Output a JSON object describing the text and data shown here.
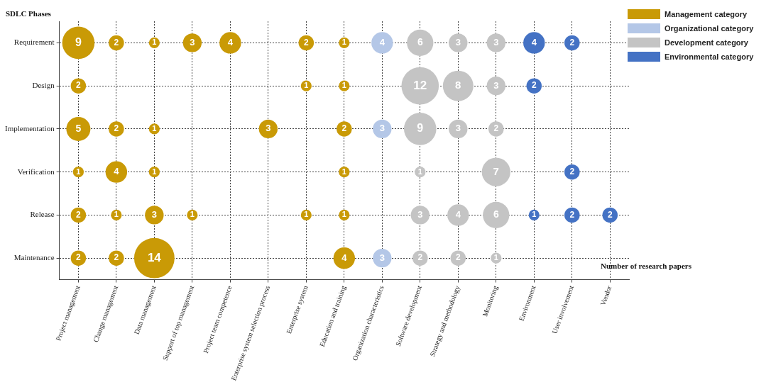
{
  "chart_data": {
    "type": "heatmap",
    "ylabel": "SDLC Phases",
    "annotations": [
      "Management category",
      "Organizational category",
      "Development category",
      "Environmental category",
      "Number of research papers"
    ],
    "categories": [
      "Project management",
      "Change management",
      "Data management",
      "Support of top management",
      "Project team competence",
      "Enterprise system selection process",
      "Enterprise system",
      "Education and training",
      "Organization characteristics",
      "Software development",
      "Strategy and methodology",
      "Monitoring",
      "Environment",
      "User involvement",
      "Vendor"
    ],
    "y_categories": [
      "Requirement",
      "Design",
      "Implementation",
      "Verification",
      "Release",
      "Maintenance"
    ],
    "cells": [
      [
        9,
        2,
        1,
        3,
        4,
        null,
        2,
        1,
        4,
        6,
        3,
        3,
        4,
        2,
        null
      ],
      [
        2,
        null,
        null,
        null,
        null,
        null,
        1,
        1,
        null,
        12,
        8,
        3,
        2,
        null,
        null
      ],
      [
        5,
        2,
        1,
        null,
        null,
        3,
        null,
        2,
        3,
        9,
        3,
        2,
        null,
        null,
        null
      ],
      [
        1,
        4,
        1,
        null,
        null,
        null,
        null,
        1,
        null,
        1,
        null,
        7,
        null,
        2,
        null
      ],
      [
        2,
        1,
        3,
        1,
        null,
        null,
        1,
        1,
        null,
        3,
        4,
        6,
        1,
        2,
        2
      ],
      [
        2,
        2,
        14,
        null,
        null,
        null,
        null,
        4,
        3,
        2,
        2,
        1,
        null,
        null,
        null
      ]
    ],
    "colors": [
      "#c99a06",
      "#c99a06",
      "#c99a06",
      "#c99a06",
      "#c99a06",
      "#c99a06",
      "#c99a06",
      "#c99a06",
      "#b4c7e7",
      "#c4c4c4",
      "#c4c4c4",
      "#c4c4c4",
      "#4472c4",
      "#4472c4",
      "#4472c4"
    ],
    "data_labels": true,
    "grid": true
  }
}
